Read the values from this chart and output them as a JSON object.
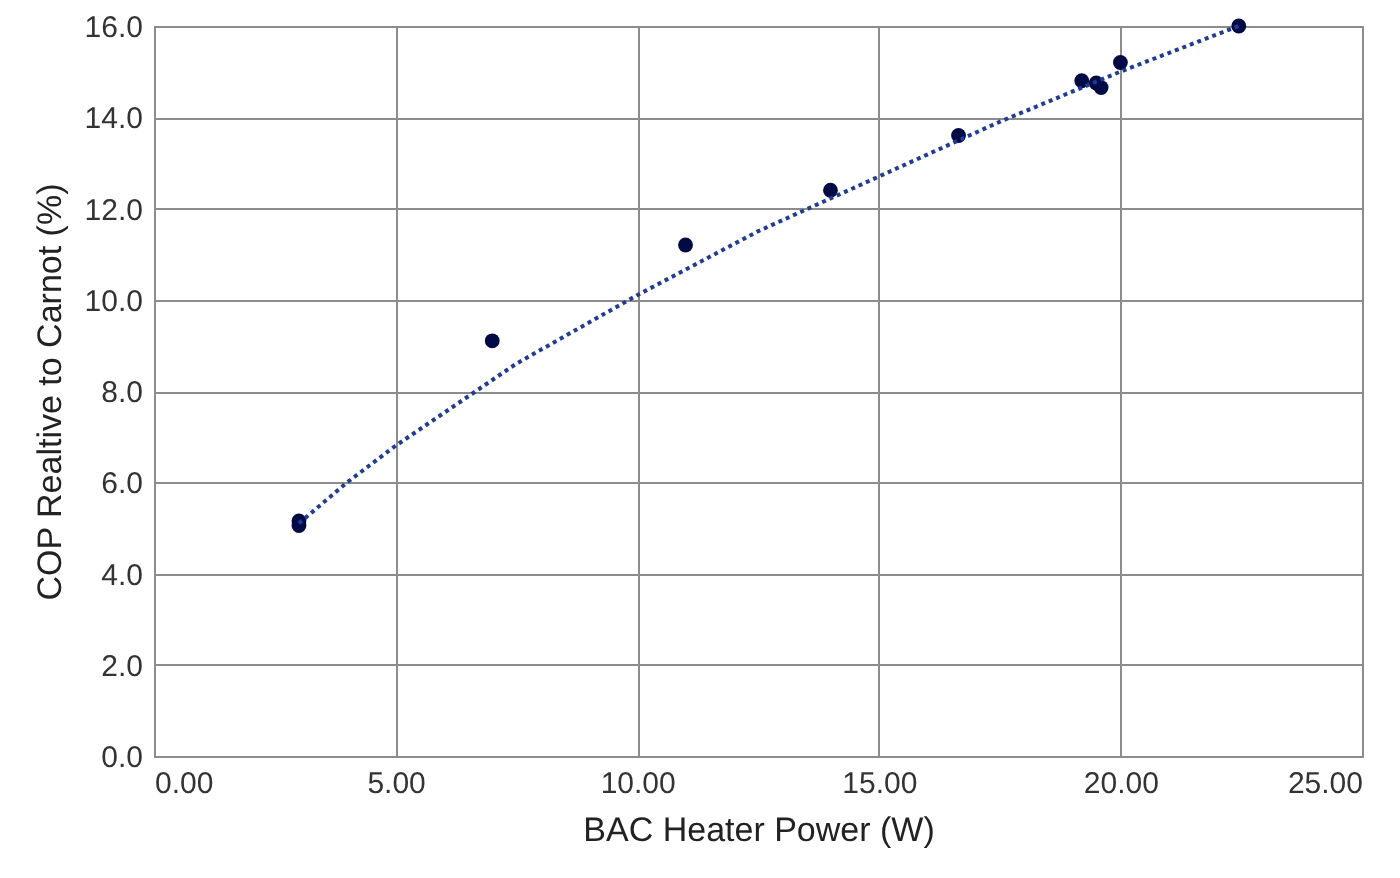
{
  "chart_data": {
    "type": "scatter",
    "xlabel": "BAC Heater Power (W)",
    "ylabel": "COP Realtive to Carnot (%)",
    "xlim": [
      0,
      25
    ],
    "ylim": [
      0,
      16
    ],
    "xticks": [
      {
        "value": 0,
        "label": "0.00"
      },
      {
        "value": 5,
        "label": "5.00"
      },
      {
        "value": 10,
        "label": "10.00"
      },
      {
        "value": 15,
        "label": "15.00"
      },
      {
        "value": 20,
        "label": "20.00"
      },
      {
        "value": 25,
        "label": "25.00"
      }
    ],
    "yticks": [
      {
        "value": 0,
        "label": "0.0"
      },
      {
        "value": 2,
        "label": "2.0"
      },
      {
        "value": 4,
        "label": "4.0"
      },
      {
        "value": 6,
        "label": "6.0"
      },
      {
        "value": 8,
        "label": "8.0"
      },
      {
        "value": 10,
        "label": "10.0"
      },
      {
        "value": 12,
        "label": "12.0"
      },
      {
        "value": 14,
        "label": "14.0"
      },
      {
        "value": 16,
        "label": "16.0"
      }
    ],
    "grid": true,
    "series": [
      {
        "marker": "circle",
        "color": "#000a45",
        "x": [
          3.0,
          3.0,
          7.0,
          11.0,
          14.0,
          16.65,
          19.2,
          19.5,
          19.6,
          20.0,
          22.45
        ],
        "values": [
          5.15,
          5.05,
          9.1,
          11.2,
          12.4,
          13.6,
          14.8,
          14.75,
          14.65,
          15.2,
          16.0
        ]
      },
      {
        "type": "line",
        "marker": "none",
        "line_style": "dotted",
        "color": "#1f3c96",
        "x": [
          3,
          4,
          5,
          7.5,
          10,
          12.5,
          15,
          17.5,
          20,
          22.45
        ],
        "values": [
          5.1,
          6.0,
          6.8,
          8.6,
          10.1,
          11.5,
          12.7,
          13.9,
          15.0,
          16.0
        ]
      }
    ]
  }
}
